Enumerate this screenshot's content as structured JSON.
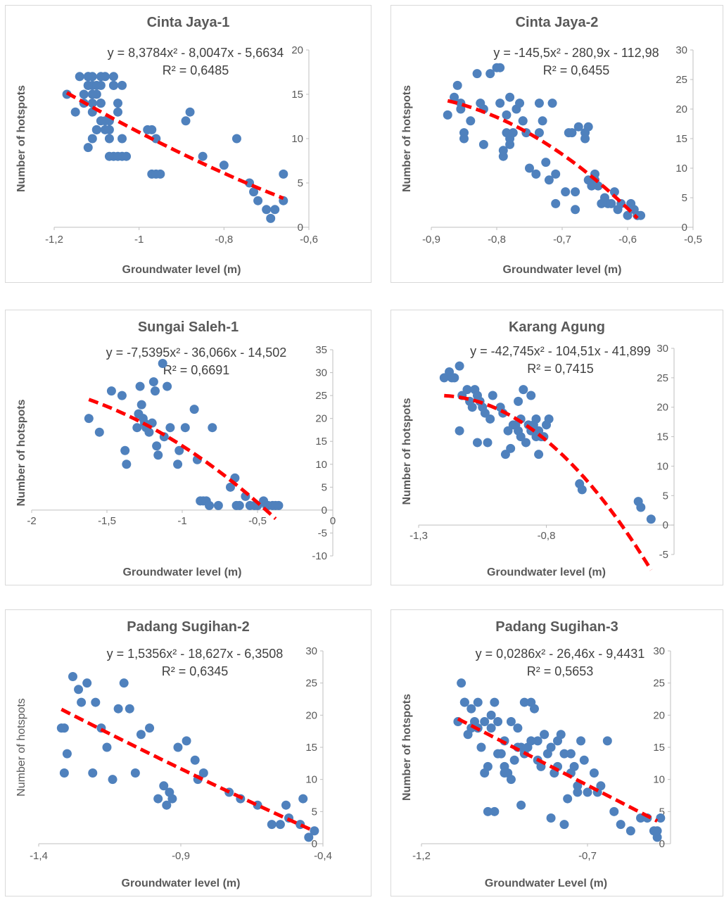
{
  "chart_data": [
    {
      "type": "scatter",
      "title": "Cinta Jaya-1",
      "xlabel": "Groundwater level (m)",
      "ylabel": "Number of hotspots",
      "xlim": [
        -1.2,
        -0.6
      ],
      "ylim": [
        0,
        20
      ],
      "xticks": [
        -1.2,
        -1,
        -0.8,
        -0.6
      ],
      "xtick_labels": [
        "-1,2",
        "-1",
        "-0,8",
        "-0,6"
      ],
      "yticks": [
        0,
        5,
        10,
        15,
        20
      ],
      "ytick_labels": [
        "0",
        "5",
        "10",
        "15",
        "20"
      ],
      "equation": "y = 8,3784x² - 8,0047x - 5,6634",
      "r2": "R² = 0,6485",
      "trend_coefficients": [
        8.3784,
        -8.0047,
        -5.6634
      ],
      "trend_range": [
        -1.17,
        -0.66
      ],
      "marker_color": "#4f81bd",
      "trend_color": "#ff0000",
      "x": [
        -1.17,
        -1.15,
        -1.14,
        -1.13,
        -1.13,
        -1.12,
        -1.12,
        -1.11,
        -1.11,
        -1.11,
        -1.1,
        -1.1,
        -1.09,
        -1.09,
        -1.09,
        -1.08,
        -1.08,
        -1.07,
        -1.07,
        -1.06,
        -1.06,
        -1.05,
        -1.05,
        -1.04,
        -1.04,
        -1.12,
        -1.11,
        -1.1,
        -1.09,
        -1.08,
        -1.07,
        -1.06,
        -1.12,
        -1.11,
        -1.1,
        -1.12,
        -1.11,
        -1.09,
        -1.07,
        -1.06,
        -1.05,
        -1.04,
        -1.03,
        -0.98,
        -0.97,
        -0.96,
        -0.95,
        -0.97,
        -0.96,
        -0.89,
        -0.88,
        -0.85,
        -0.8,
        -0.77,
        -0.74,
        -0.73,
        -0.72,
        -0.7,
        -0.69,
        -0.68,
        -0.66,
        -0.66
      ],
      "y": [
        15,
        13,
        17,
        15,
        14,
        17,
        16,
        16,
        17,
        14,
        16,
        15,
        17,
        16,
        14,
        12,
        17,
        11,
        12,
        16,
        17,
        14,
        13,
        10,
        8,
        9,
        10,
        11,
        12,
        11,
        10,
        8,
        17,
        15,
        11,
        16,
        13,
        14,
        8,
        16,
        8,
        16,
        8,
        11,
        11,
        10,
        6,
        6,
        6,
        12,
        13,
        8,
        7,
        10,
        5,
        4,
        3,
        2,
        1,
        2,
        6,
        3
      ]
    },
    {
      "type": "scatter",
      "title": "Cinta Jaya-2",
      "xlabel": "Groundwater level (m)",
      "ylabel": "Number of hotspots",
      "xlim": [
        -0.9,
        -0.5
      ],
      "ylim": [
        0,
        30
      ],
      "xticks": [
        -0.9,
        -0.8,
        -0.7,
        -0.6,
        -0.5
      ],
      "xtick_labels": [
        "-0,9",
        "-0,8",
        "-0,7",
        "-0,6",
        "-0,5"
      ],
      "yticks": [
        0,
        5,
        10,
        15,
        20,
        25,
        30
      ],
      "ytick_labels": [
        "0",
        "5",
        "10",
        "15",
        "20",
        "25",
        "30"
      ],
      "equation": "y = -145,5x² - 280,9x - 112,98",
      "r2": "R² = 0,6455",
      "trend_coefficients": [
        -145.5,
        -280.9,
        -112.98
      ],
      "trend_range": [
        -0.875,
        -0.585
      ],
      "marker_color": "#4f81bd",
      "trend_color": "#ff0000",
      "x": [
        -0.875,
        -0.865,
        -0.86,
        -0.855,
        -0.855,
        -0.85,
        -0.85,
        -0.84,
        -0.83,
        -0.825,
        -0.82,
        -0.82,
        -0.81,
        -0.8,
        -0.795,
        -0.79,
        -0.79,
        -0.785,
        -0.785,
        -0.78,
        -0.78,
        -0.78,
        -0.775,
        -0.77,
        -0.765,
        -0.76,
        -0.76,
        -0.755,
        -0.75,
        -0.74,
        -0.735,
        -0.735,
        -0.73,
        -0.725,
        -0.72,
        -0.715,
        -0.71,
        -0.71,
        -0.695,
        -0.69,
        -0.685,
        -0.68,
        -0.68,
        -0.675,
        -0.665,
        -0.665,
        -0.66,
        -0.66,
        -0.655,
        -0.65,
        -0.65,
        -0.645,
        -0.64,
        -0.635,
        -0.63,
        -0.625,
        -0.62,
        -0.615,
        -0.61,
        -0.6,
        -0.595,
        -0.59,
        -0.585,
        -0.58,
        -0.585,
        -0.795
      ],
      "y": [
        19,
        22,
        24,
        21,
        20,
        15,
        16,
        18,
        26,
        21,
        14,
        20,
        26,
        27,
        21,
        12,
        13,
        16,
        19,
        14,
        22,
        15,
        16,
        20,
        21,
        18,
        18,
        16,
        10,
        9,
        21,
        16,
        18,
        11,
        8,
        21,
        9,
        4,
        6,
        16,
        16,
        6,
        3,
        17,
        16,
        15,
        8,
        17,
        7,
        9,
        8,
        7,
        4,
        5,
        4,
        4,
        6,
        3,
        4,
        2,
        4,
        3,
        2,
        2,
        2,
        27
      ]
    },
    {
      "type": "scatter",
      "title": "Sungai Saleh-1",
      "xlabel": "Groundwater level (m)",
      "ylabel": "Number of hotspots",
      "xlim": [
        -2,
        0
      ],
      "ylim": [
        -10,
        35
      ],
      "xticks": [
        -2,
        -1.5,
        -1,
        -0.5,
        0
      ],
      "xtick_labels": [
        "-2",
        "-1,5",
        "-1",
        "-0,5",
        "0"
      ],
      "yticks": [
        -10,
        -5,
        0,
        5,
        10,
        15,
        20,
        25,
        30,
        35
      ],
      "ytick_labels": [
        "-10",
        "-5",
        "0",
        "5",
        "10",
        "15",
        "20",
        "25",
        "30",
        "35"
      ],
      "equation": "y = -7,5395x² - 36,066x - 14,502",
      "r2": "R² = 0,6691",
      "trend_coefficients": [
        -7.5395,
        -36.066,
        -14.502
      ],
      "trend_range": [
        -1.62,
        -0.38
      ],
      "marker_color": "#4f81bd",
      "trend_color": "#ff0000",
      "x": [
        -1.62,
        -1.55,
        -1.47,
        -1.4,
        -1.38,
        -1.37,
        -1.3,
        -1.29,
        -1.28,
        -1.27,
        -1.26,
        -1.25,
        -1.24,
        -1.22,
        -1.2,
        -1.19,
        -1.18,
        -1.17,
        -1.16,
        -1.13,
        -1.12,
        -1.1,
        -1.08,
        -1.03,
        -1.02,
        -0.98,
        -0.92,
        -0.9,
        -0.88,
        -0.86,
        -0.84,
        -0.82,
        -0.76,
        -0.68,
        -0.65,
        -0.64,
        -0.62,
        -0.58,
        -0.55,
        -0.52,
        -0.5,
        -0.46,
        -0.44,
        -0.43,
        -0.4,
        -0.38,
        -0.36,
        -0.8
      ],
      "y": [
        20,
        17,
        26,
        25,
        13,
        10,
        18,
        21,
        27,
        23,
        20,
        19,
        18,
        17,
        19,
        28,
        26,
        14,
        12,
        32,
        16,
        27,
        18,
        10,
        13,
        18,
        22,
        11,
        2,
        2,
        2,
        1,
        1,
        5,
        7,
        1,
        1,
        3,
        1,
        1,
        1,
        2,
        1,
        1,
        1,
        1,
        1,
        18
      ]
    },
    {
      "type": "scatter",
      "title": "Karang Agung",
      "xlabel": "Groundwater level (m)",
      "ylabel": "Number of hotspots",
      "xlim": [
        -1.3,
        -0.3
      ],
      "ylim": [
        -5,
        30
      ],
      "xticks": [
        -1.3,
        -0.8
      ],
      "xtick_labels": [
        "-1,3",
        "-0,8"
      ],
      "yticks": [
        -5,
        0,
        5,
        10,
        15,
        20,
        25,
        30
      ],
      "ytick_labels": [
        "-5",
        "0",
        "5",
        "10",
        "15",
        "20",
        "25",
        "30"
      ],
      "equation": "y = -42,745x² - 104,51x - 41,899",
      "r2": "R² = 0,7415",
      "trend_coefficients": [
        -42.745,
        -104.51,
        -41.899
      ],
      "trend_range": [
        -1.2,
        -0.39
      ],
      "marker_color": "#4f81bd",
      "trend_color": "#ff0000",
      "x": [
        -1.2,
        -1.18,
        -1.17,
        -1.16,
        -1.14,
        -1.14,
        -1.13,
        -1.11,
        -1.1,
        -1.09,
        -1.08,
        -1.07,
        -1.07,
        -1.06,
        -1.05,
        -1.04,
        -1.03,
        -1.02,
        -1.01,
        -0.98,
        -0.97,
        -0.96,
        -0.95,
        -0.94,
        -0.93,
        -0.92,
        -0.91,
        -0.91,
        -0.9,
        -0.9,
        -0.89,
        -0.88,
        -0.87,
        -0.86,
        -0.86,
        -0.85,
        -0.84,
        -0.84,
        -0.83,
        -0.83,
        -0.82,
        -0.81,
        -0.8,
        -0.79,
        -0.67,
        -0.66,
        -0.44,
        -0.43,
        -0.39
      ],
      "y": [
        25,
        26,
        25,
        25,
        16,
        27,
        22,
        23,
        21,
        20,
        23,
        22,
        14,
        21,
        20,
        19,
        14,
        18,
        22,
        20,
        19,
        12,
        16,
        13,
        17,
        17,
        21,
        16,
        18,
        15,
        23,
        14,
        17,
        22,
        16,
        17,
        15,
        18,
        16,
        12,
        15,
        15,
        17,
        18,
        7,
        6,
        4,
        3,
        1
      ]
    },
    {
      "type": "scatter",
      "title": "Padang Sugihan-2",
      "xlabel": "Groundwater level (m)",
      "ylabel": "Number of hotspots",
      "xlim": [
        -1.4,
        -0.4
      ],
      "ylim": [
        0,
        30
      ],
      "xticks": [
        -1.4,
        -0.9,
        -0.4
      ],
      "xtick_labels": [
        "-1,4",
        "-0,9",
        "-0,4"
      ],
      "yticks": [
        0,
        5,
        10,
        15,
        20,
        25,
        30
      ],
      "ytick_labels": [
        "0",
        "5",
        "10",
        "15",
        "20",
        "25",
        "30"
      ],
      "equation": "y = 1,5356x² - 18,627x - 6,3508",
      "r2": "R² = 0,6345",
      "trend_coefficients": [
        1.5356,
        -18.627,
        -6.3508
      ],
      "trend_range": [
        -1.32,
        -0.44
      ],
      "marker_color": "#4f81bd",
      "trend_color": "#ff0000",
      "x": [
        -1.32,
        -1.31,
        -1.31,
        -1.3,
        -1.28,
        -1.26,
        -1.25,
        -1.23,
        -1.21,
        -1.2,
        -1.18,
        -1.16,
        -1.14,
        -1.12,
        -1.1,
        -1.08,
        -1.06,
        -1.04,
        -1.01,
        -0.98,
        -0.96,
        -0.95,
        -0.94,
        -0.93,
        -0.91,
        -0.88,
        -0.85,
        -0.84,
        -0.82,
        -0.73,
        -0.69,
        -0.63,
        -0.58,
        -0.55,
        -0.53,
        -0.52,
        -0.48,
        -0.47,
        -0.45,
        -0.43
      ],
      "y": [
        18,
        18,
        11,
        14,
        26,
        24,
        22,
        25,
        11,
        22,
        18,
        15,
        10,
        21,
        25,
        21,
        11,
        17,
        18,
        7,
        9,
        6,
        8,
        7,
        15,
        16,
        13,
        10,
        11,
        8,
        7,
        6,
        3,
        3,
        6,
        4,
        3,
        7,
        1,
        2
      ]
    },
    {
      "type": "scatter",
      "title": "Padang Sugihan-3",
      "xlabel": "Groundwater Level (m)",
      "ylabel": "Number of hotspots",
      "xlim": [
        -1.2,
        -0.45
      ],
      "ylim": [
        0,
        30
      ],
      "xticks": [
        -1.2,
        -0.7
      ],
      "xtick_labels": [
        "-1,2",
        "-0,7"
      ],
      "yticks": [
        0,
        5,
        10,
        15,
        20,
        25,
        30
      ],
      "ytick_labels": [
        "0",
        "5",
        "10",
        "15",
        "20",
        "25",
        "30"
      ],
      "equation": "y = 0,0286x² - 26,46x - 9,4431",
      "r2": "R² = 0,5653",
      "trend_coefficients": [
        0.0286,
        -26.46,
        -9.4431
      ],
      "trend_range": [
        -1.09,
        -0.49
      ],
      "marker_color": "#4f81bd",
      "trend_color": "#ff0000",
      "x": [
        -1.09,
        -1.08,
        -1.07,
        -1.06,
        -1.05,
        -1.04,
        -1.03,
        -1.02,
        -1.01,
        -1.0,
        -0.99,
        -0.98,
        -0.97,
        -0.96,
        -0.95,
        -0.94,
        -0.93,
        -0.92,
        -0.91,
        -0.9,
        -0.89,
        -0.88,
        -0.87,
        -0.86,
        -0.85,
        -0.84,
        -0.83,
        -0.82,
        -0.81,
        -0.8,
        -0.79,
        -0.78,
        -0.77,
        -0.76,
        -0.75,
        -0.74,
        -0.73,
        -0.72,
        -0.71,
        -0.7,
        -0.68,
        -0.67,
        -0.66,
        -0.64,
        -0.62,
        -0.6,
        -0.57,
        -0.54,
        -0.52,
        -0.5,
        -0.49,
        -0.49,
        -0.48,
        -1.07,
        -1.05,
        -1.03,
        -1.01,
        -0.99,
        -0.97,
        -0.95,
        -0.93,
        -0.91,
        -0.89,
        -0.87,
        -0.85,
        -0.83,
        -0.81,
        -0.79,
        -0.77,
        -0.75,
        -0.73,
        -1.0,
        -0.98,
        -0.9,
        -0.95
      ],
      "y": [
        19,
        25,
        22,
        17,
        21,
        19,
        18,
        15,
        11,
        12,
        20,
        22,
        19,
        14,
        12,
        11,
        10,
        13,
        18,
        15,
        22,
        15,
        22,
        21,
        16,
        12,
        17,
        14,
        15,
        11,
        16,
        17,
        14,
        7,
        11,
        12,
        9,
        16,
        13,
        8,
        11,
        8,
        9,
        16,
        5,
        3,
        2,
        4,
        4,
        2,
        1,
        2,
        4,
        22,
        18,
        22,
        19,
        18,
        14,
        16,
        19,
        15,
        14,
        16,
        13,
        17,
        4,
        12,
        3,
        14,
        8,
        5,
        5,
        6,
        11
      ]
    }
  ]
}
